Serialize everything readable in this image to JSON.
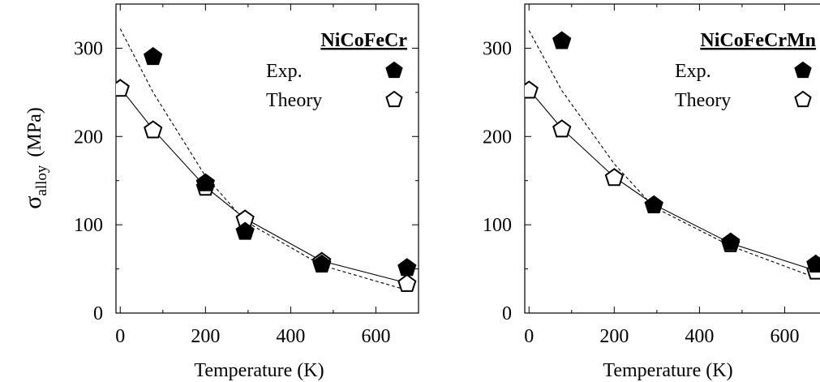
{
  "chart_data": [
    {
      "type": "scatter",
      "title": "NiCoFeCr",
      "xlabel": "Temperature (K)",
      "ylabel": "σ",
      "ylabel_sub": "alloy",
      "ylabel_unit": "(MPa)",
      "xlim": [
        -10,
        700
      ],
      "ylim": [
        0,
        350
      ],
      "xticks": [
        0,
        200,
        400,
        600
      ],
      "yticks": [
        0,
        100,
        200,
        300
      ],
      "legend_position": "top-right",
      "series": [
        {
          "name": "Exp.",
          "marker": "filled-pentagon",
          "x": [
            77,
            200,
            293,
            473,
            673
          ],
          "y": [
            291,
            148,
            93,
            56,
            52
          ]
        },
        {
          "name": "Theory",
          "marker": "open-pentagon",
          "x": [
            0,
            77,
            200,
            293,
            473,
            673
          ],
          "y": [
            255,
            208,
            143,
            107,
            59,
            34
          ]
        }
      ],
      "lines": [
        {
          "style": "solid",
          "x": [
            0,
            77,
            200,
            293,
            473,
            673
          ],
          "y": [
            255,
            208,
            143,
            107,
            59,
            34
          ]
        },
        {
          "style": "dashed",
          "x": [
            0,
            77,
            200,
            293,
            473,
            673
          ],
          "y": [
            322,
            250,
            155,
            104,
            54,
            26
          ]
        }
      ]
    },
    {
      "type": "scatter",
      "title": "NiCoFeCrMn",
      "xlabel": "Temperature (K)",
      "ylabel": "",
      "xlim": [
        -10,
        700
      ],
      "ylim": [
        0,
        350
      ],
      "xticks": [
        0,
        200,
        400,
        600
      ],
      "yticks": [
        0,
        100,
        200,
        300
      ],
      "legend_position": "top-right",
      "series": [
        {
          "name": "Exp.",
          "marker": "filled-pentagon",
          "x": [
            77,
            293,
            473,
            673
          ],
          "y": [
            309,
            123,
            81,
            56
          ]
        },
        {
          "name": "Theory",
          "marker": "open-pentagon",
          "x": [
            0,
            77,
            200,
            293,
            473,
            673
          ],
          "y": [
            253,
            209,
            154,
            123,
            79,
            48
          ]
        }
      ],
      "lines": [
        {
          "style": "solid",
          "x": [
            0,
            77,
            200,
            293,
            473,
            673
          ],
          "y": [
            253,
            209,
            154,
            123,
            79,
            48
          ]
        },
        {
          "style": "dashed",
          "x": [
            0,
            77,
            200,
            293,
            473,
            673
          ],
          "y": [
            320,
            252,
            169,
            120,
            76,
            40
          ]
        }
      ]
    }
  ],
  "colors": {
    "ink": "#000000",
    "background": "#ffffff"
  }
}
